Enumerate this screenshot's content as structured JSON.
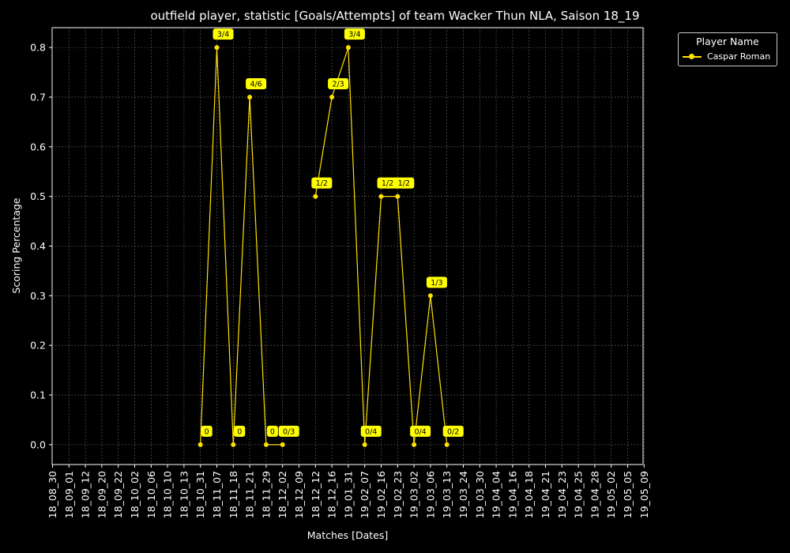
{
  "chart_data": {
    "type": "line",
    "title": "outfield player, statistic [Goals/Attempts] of team Wacker Thun NLA, Saison 18_19",
    "xlabel": "Matches [Dates]",
    "ylabel": "Scoring Percentage",
    "ylim": [
      -0.04,
      0.84
    ],
    "yticks": [
      "0.0",
      "0.1",
      "0.2",
      "0.3",
      "0.4",
      "0.5",
      "0.6",
      "0.7",
      "0.8"
    ],
    "grid": true,
    "legend": {
      "title": "Player Name",
      "placement": "outside-top-right"
    },
    "categories": [
      "18_08_30",
      "18_09_01",
      "18_09_12",
      "18_09_20",
      "18_09_22",
      "18_10_02",
      "18_10_06",
      "18_10_10",
      "18_10_13",
      "18_10_31",
      "18_11_07",
      "18_11_18",
      "18_11_21",
      "18_11_29",
      "18_12_02",
      "18_12_09",
      "18_12_12",
      "18_12_16",
      "19_01_31",
      "19_02_07",
      "19_02_16",
      "19_02_23",
      "19_03_02",
      "19_03_06",
      "19_03_13",
      "19_03_24",
      "19_03_30",
      "19_04_04",
      "19_04_16",
      "19_04_18",
      "19_04_21",
      "19_04_23",
      "19_04_25",
      "19_04_28",
      "19_05_02",
      "19_05_05",
      "19_05_09"
    ],
    "series": [
      {
        "name": "Caspar Roman",
        "color": "#ffe100",
        "values": [
          null,
          null,
          null,
          null,
          null,
          null,
          null,
          null,
          null,
          0.0,
          0.8,
          0.0,
          0.7,
          0.0,
          0.0,
          null,
          0.5,
          0.7,
          0.8,
          0.0,
          0.5,
          0.5,
          0.0,
          0.3,
          0.0,
          null,
          null,
          null,
          null,
          null,
          null,
          null,
          null,
          null,
          null,
          null,
          null
        ],
        "labels": [
          null,
          null,
          null,
          null,
          null,
          null,
          null,
          null,
          null,
          "0",
          "3/4",
          "0",
          "4/6",
          "0",
          "0/3",
          null,
          "1/2",
          "2/3",
          "3/4",
          "0/4",
          "1/2",
          "1/2",
          "0/4",
          "1/3",
          "0/2",
          null,
          null,
          null,
          null,
          null,
          null,
          null,
          null,
          null,
          null,
          null,
          null
        ]
      }
    ]
  }
}
